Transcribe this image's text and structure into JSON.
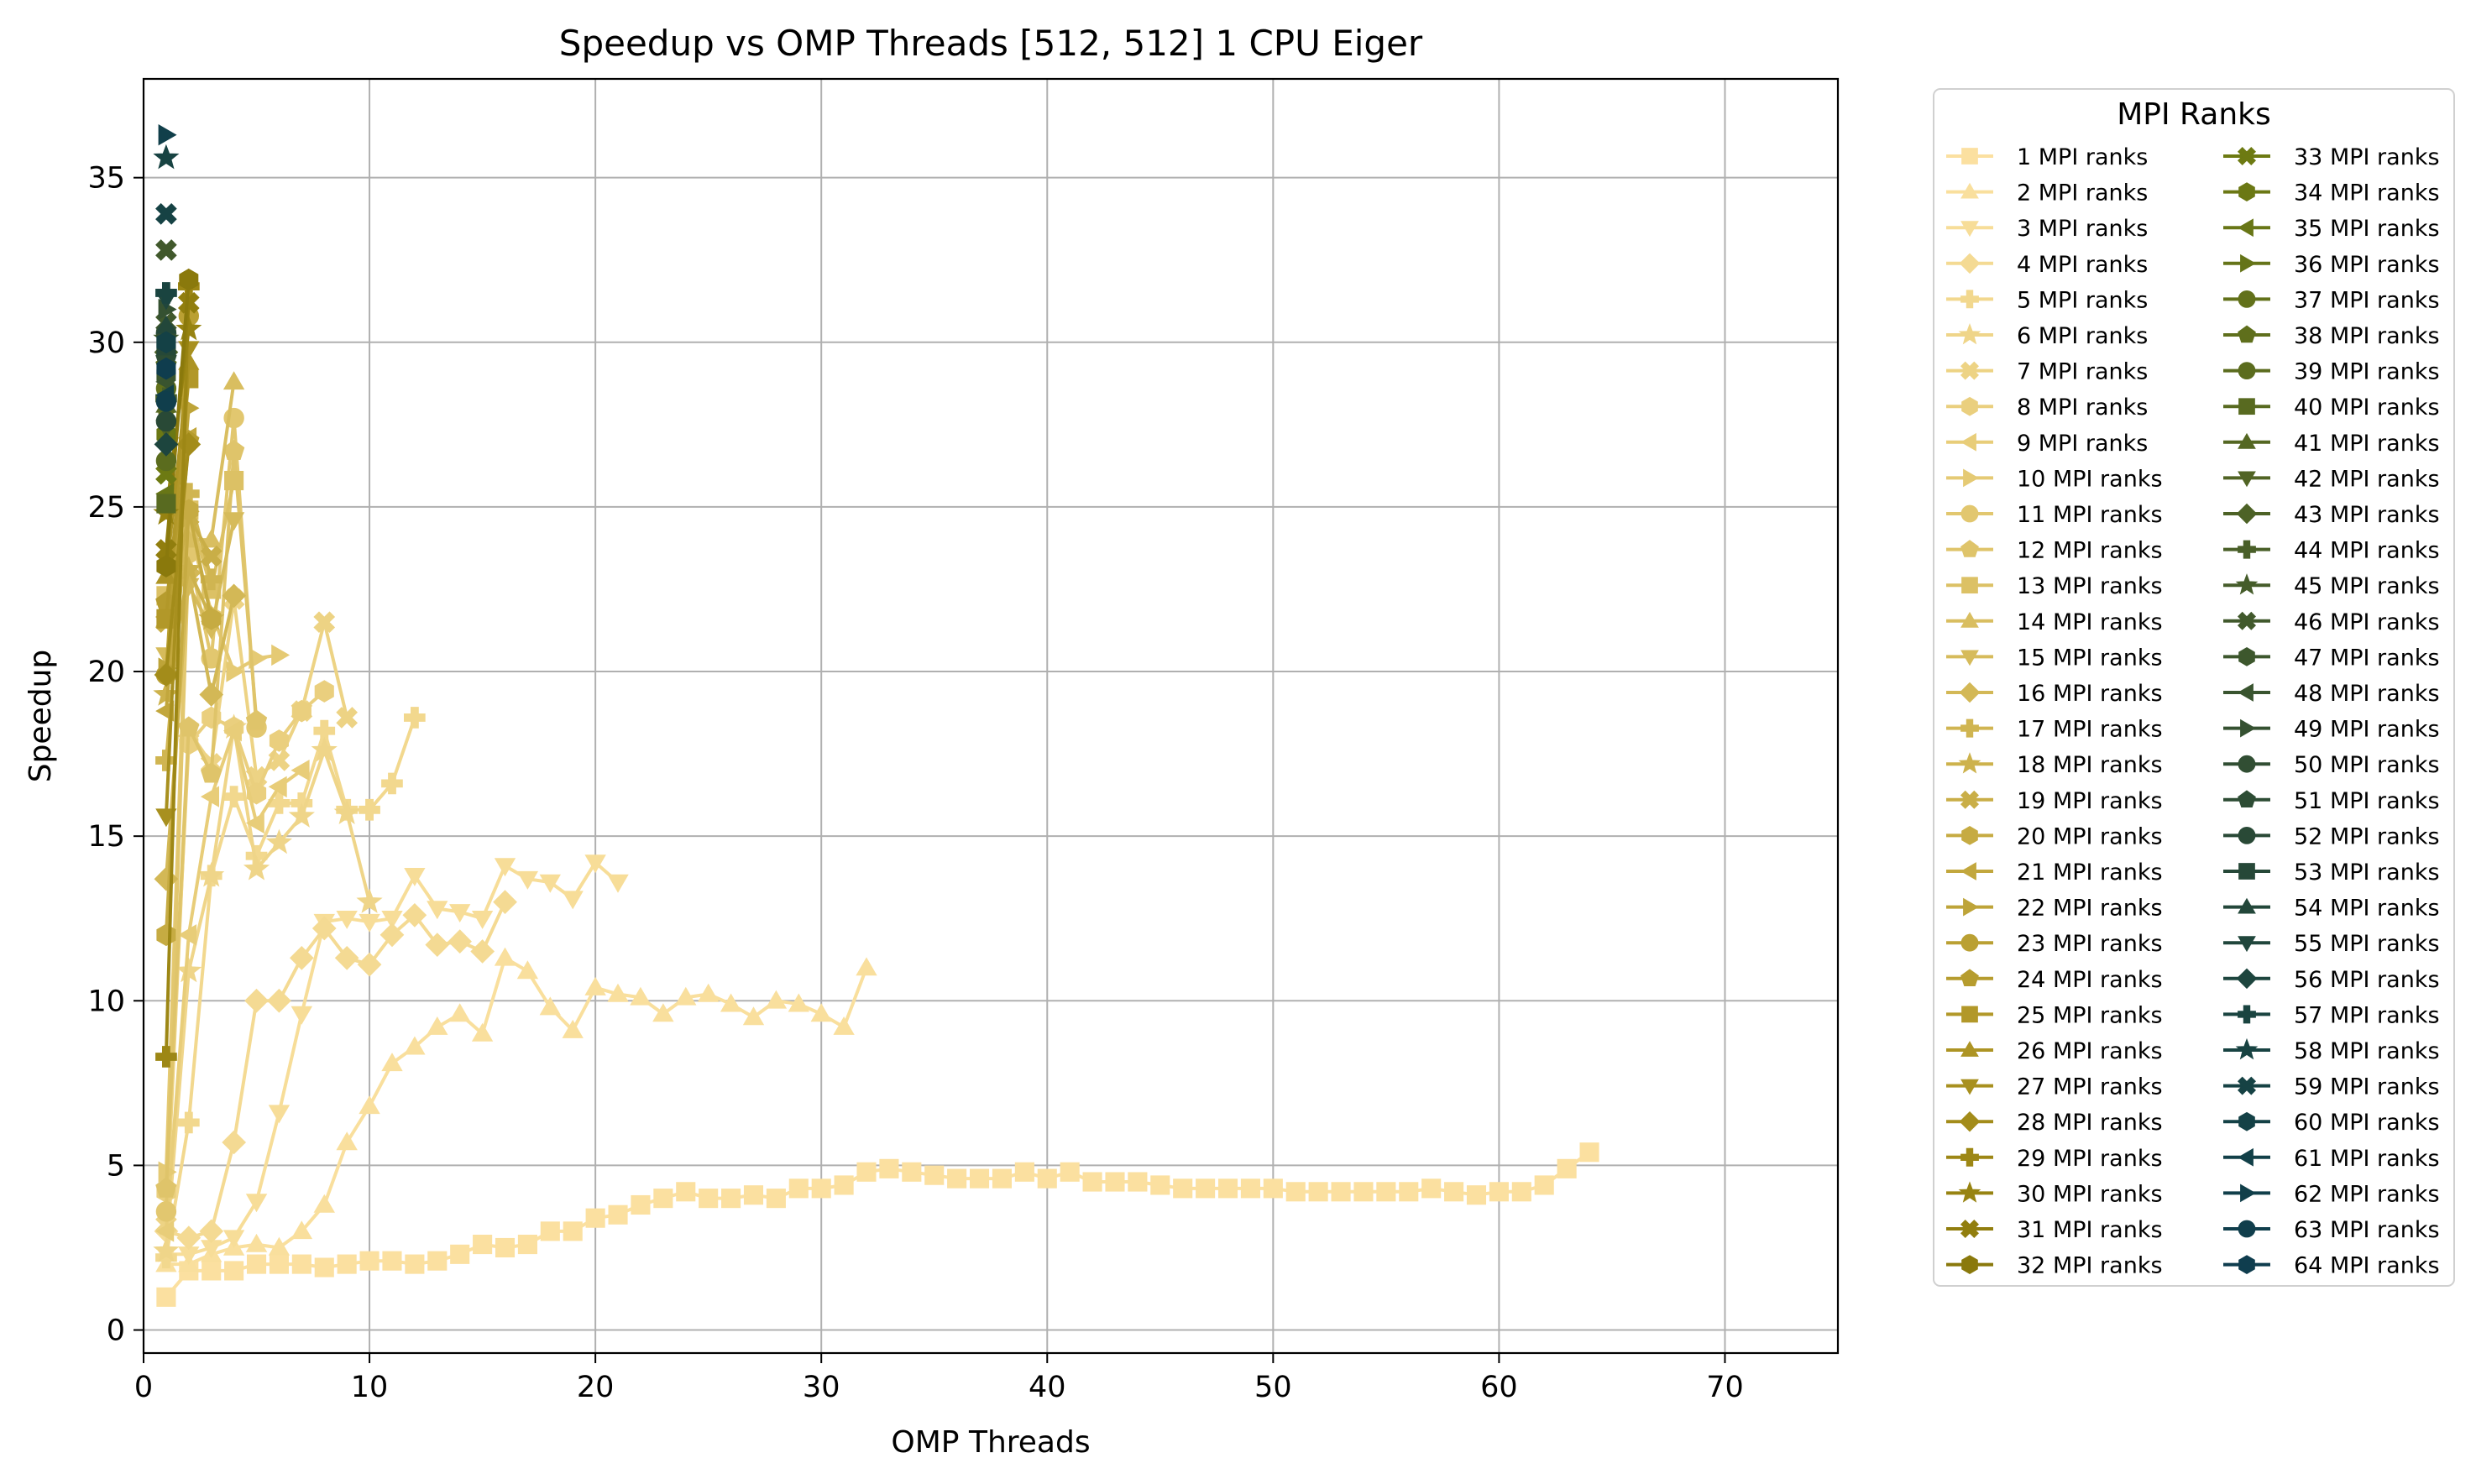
{
  "chart_data": {
    "type": "line",
    "title": "Speedup vs OMP Threads [512, 512] 1 CPU Eiger",
    "xlabel": "OMP Threads",
    "ylabel": "Speedup",
    "xlim": [
      0,
      75
    ],
    "ylim": [
      -0.7,
      38
    ],
    "xticks": [
      "0",
      "10",
      "20",
      "30",
      "40",
      "50",
      "60",
      "70"
    ],
    "yticks": [
      "0",
      "5",
      "10",
      "15",
      "20",
      "25",
      "30",
      "35"
    ],
    "grid": true,
    "legend_title": "MPI Ranks",
    "legend_position": "outside-right",
    "series_markers": [
      "s",
      "^",
      "v",
      "D",
      "P",
      "*",
      "X",
      "h",
      "<",
      ">",
      "o",
      "p"
    ],
    "series": [
      {
        "name": "1 MPI ranks",
        "color": "#fbe0a0",
        "marker": "s",
        "x": [
          1,
          2,
          3,
          4,
          5,
          6,
          7,
          8,
          9,
          10,
          11,
          12,
          13,
          14,
          15,
          16,
          17,
          18,
          19,
          20,
          21,
          22,
          23,
          24,
          25,
          26,
          27,
          28,
          29,
          30,
          31,
          32,
          33,
          34,
          35,
          36,
          37,
          38,
          39,
          40,
          41,
          42,
          43,
          44,
          45,
          46,
          47,
          48,
          49,
          50,
          51,
          52,
          53,
          54,
          55,
          56,
          57,
          58,
          59,
          60,
          61,
          62,
          63,
          64
        ],
        "y": [
          1.0,
          1.8,
          1.8,
          1.8,
          2.0,
          2.0,
          2.0,
          1.9,
          2.0,
          2.1,
          2.1,
          2.0,
          2.1,
          2.3,
          2.6,
          2.5,
          2.6,
          3.0,
          3.0,
          3.4,
          3.5,
          3.8,
          4.0,
          4.2,
          4.0,
          4.0,
          4.1,
          4.0,
          4.3,
          4.3,
          4.4,
          4.8,
          4.9,
          4.8,
          4.7,
          4.6,
          4.6,
          4.6,
          4.8,
          4.6,
          4.8,
          4.5,
          4.5,
          4.5,
          4.4,
          4.3,
          4.3,
          4.3,
          4.3,
          4.3,
          4.2,
          4.2,
          4.2,
          4.2,
          4.2,
          4.2,
          4.3,
          4.2,
          4.1,
          4.2,
          4.2,
          4.4,
          4.9,
          5.4
        ]
      },
      {
        "name": "2 MPI ranks",
        "color": "#f9df9d",
        "marker": "^",
        "x": [
          1,
          2,
          3,
          4,
          5,
          6,
          7,
          8,
          9,
          10,
          11,
          12,
          13,
          14,
          15,
          16,
          17,
          18,
          19,
          20,
          21,
          22,
          23,
          24,
          25,
          26,
          27,
          28,
          29,
          30,
          31,
          32
        ],
        "y": [
          2.0,
          2.0,
          2.3,
          2.5,
          2.6,
          2.5,
          3.0,
          3.8,
          5.7,
          6.8,
          8.1,
          8.6,
          9.2,
          9.6,
          9.0,
          11.3,
          10.9,
          9.8,
          9.1,
          10.4,
          10.2,
          10.1,
          9.6,
          10.1,
          10.2,
          9.9,
          9.5,
          10.0,
          9.9,
          9.6,
          9.2,
          11.0
        ]
      },
      {
        "name": "3 MPI ranks",
        "color": "#f7dd98",
        "marker": "v",
        "x": [
          1,
          2,
          3,
          4,
          5,
          6,
          7,
          8,
          9,
          10,
          11,
          12,
          13,
          14,
          15,
          16,
          17,
          18,
          19,
          20,
          21
        ],
        "y": [
          2.3,
          2.3,
          2.5,
          2.8,
          3.9,
          6.6,
          9.6,
          12.4,
          12.5,
          12.4,
          12.5,
          13.8,
          12.8,
          12.7,
          12.5,
          14.1,
          13.7,
          13.6,
          13.1,
          14.2,
          13.6
        ]
      },
      {
        "name": "4 MPI ranks",
        "color": "#f4da93",
        "marker": "D",
        "x": [
          1,
          2,
          3,
          4,
          5,
          6,
          7,
          8,
          9,
          10,
          11,
          12,
          13,
          14,
          15,
          16
        ],
        "y": [
          3.0,
          2.8,
          3.0,
          5.7,
          10.0,
          10.0,
          11.3,
          12.2,
          11.3,
          11.1,
          12.0,
          12.6,
          11.7,
          11.8,
          11.5,
          13.0
        ]
      },
      {
        "name": "5 MPI ranks",
        "color": "#f2d88e",
        "marker": "P",
        "x": [
          1,
          2,
          3,
          4,
          5,
          6,
          7,
          8,
          9,
          10,
          11,
          12
        ],
        "y": [
          2.2,
          6.3,
          13.8,
          16.2,
          14.4,
          16.0,
          16.0,
          18.2,
          15.8,
          15.8,
          16.6,
          18.6
        ]
      },
      {
        "name": "6 MPI ranks",
        "color": "#efd589",
        "marker": "*",
        "x": [
          1,
          2,
          3,
          4,
          5,
          6,
          7,
          8,
          9,
          10
        ],
        "y": [
          2.4,
          10.9,
          13.8,
          18.3,
          14.0,
          14.8,
          15.6,
          17.6,
          15.7,
          13.0
        ]
      },
      {
        "name": "7 MPI ranks",
        "color": "#edd384",
        "marker": "X",
        "x": [
          1,
          2,
          3,
          4,
          5,
          6,
          7,
          8,
          9
        ],
        "y": [
          3.2,
          18.2,
          17.2,
          22.2,
          16.8,
          17.3,
          18.8,
          21.5,
          18.6
        ]
      },
      {
        "name": "8 MPI ranks",
        "color": "#eacf7e",
        "marker": "h",
        "x": [
          1,
          2,
          3,
          4,
          5,
          6,
          7,
          8
        ],
        "y": [
          4.2,
          17.8,
          18.6,
          18.3,
          16.3,
          17.9,
          18.8,
          19.4
        ]
      },
      {
        "name": "9 MPI ranks",
        "color": "#e8cd79",
        "marker": "<",
        "x": [
          1,
          2,
          3,
          4,
          5,
          6,
          7
        ],
        "y": [
          3.0,
          12.0,
          16.2,
          18.2,
          15.4,
          16.5,
          17.0
        ]
      },
      {
        "name": "10 MPI ranks",
        "color": "#e5ca74",
        "marker": ">",
        "x": [
          1,
          2,
          3,
          4,
          5,
          6
        ],
        "y": [
          4.8,
          24.4,
          21.8,
          20.0,
          20.4,
          20.5
        ]
      },
      {
        "name": "11 MPI ranks",
        "color": "#e2c76f",
        "marker": "o",
        "x": [
          1,
          2,
          3,
          4,
          5
        ],
        "y": [
          3.6,
          23.6,
          20.4,
          27.7,
          18.3
        ]
      },
      {
        "name": "12 MPI ranks",
        "color": "#dfc46a",
        "marker": "p",
        "x": [
          1,
          2,
          3,
          4,
          5
        ],
        "y": [
          4.3,
          18.3,
          16.9,
          26.7,
          18.5
        ]
      },
      {
        "name": "13 MPI ranks",
        "color": "#dcc165",
        "marker": "s",
        "x": [
          1,
          2,
          3,
          4
        ],
        "y": [
          22.3,
          24.9,
          22.5,
          25.8
        ]
      },
      {
        "name": "14 MPI ranks",
        "color": "#d9be60",
        "marker": "^",
        "x": [
          1,
          2,
          3,
          4
        ],
        "y": [
          21.6,
          24.0,
          24.0,
          28.8
        ]
      },
      {
        "name": "15 MPI ranks",
        "color": "#d6bb5b",
        "marker": "v",
        "x": [
          1,
          2,
          3,
          4
        ],
        "y": [
          20.5,
          22.6,
          21.3,
          24.6
        ]
      },
      {
        "name": "16 MPI ranks",
        "color": "#d3b856",
        "marker": "D",
        "x": [
          1,
          2,
          3,
          4
        ],
        "y": [
          13.7,
          23.0,
          19.3,
          22.3
        ]
      },
      {
        "name": "17 MPI ranks",
        "color": "#d0b551",
        "marker": "P",
        "x": [
          1,
          2,
          3
        ],
        "y": [
          17.3,
          25.4,
          22.8
        ]
      },
      {
        "name": "18 MPI ranks",
        "color": "#cdb24c",
        "marker": "*",
        "x": [
          1,
          2,
          3
        ],
        "y": [
          19.3,
          23.1,
          21.6
        ]
      },
      {
        "name": "19 MPI ranks",
        "color": "#c9ae47",
        "marker": "X",
        "x": [
          1,
          2,
          3
        ],
        "y": [
          21.5,
          24.7,
          23.5
        ]
      },
      {
        "name": "20 MPI ranks",
        "color": "#c6ab42",
        "marker": "h",
        "x": [
          1,
          2,
          3
        ],
        "y": [
          12.0,
          24.9,
          21.6
        ]
      },
      {
        "name": "21 MPI ranks",
        "color": "#c2a73d",
        "marker": "<",
        "x": [
          1,
          2
        ],
        "y": [
          18.8,
          27.1
        ]
      },
      {
        "name": "22 MPI ranks",
        "color": "#bea438",
        "marker": ">",
        "x": [
          1,
          2
        ],
        "y": [
          20.1,
          28.0
        ]
      },
      {
        "name": "23 MPI ranks",
        "color": "#baa033",
        "marker": "o",
        "x": [
          1,
          2
        ],
        "y": [
          19.9,
          30.8
        ]
      },
      {
        "name": "24 MPI ranks",
        "color": "#b69c2e",
        "marker": "p",
        "x": [
          1,
          2
        ],
        "y": [
          22.1,
          27.0
        ]
      },
      {
        "name": "25 MPI ranks",
        "color": "#b29829",
        "marker": "s",
        "x": [
          1,
          2
        ],
        "y": [
          21.6,
          28.9
        ]
      },
      {
        "name": "26 MPI ranks",
        "color": "#ad9424",
        "marker": "^",
        "x": [
          1,
          2
        ],
        "y": [
          22.9,
          29.4
        ]
      },
      {
        "name": "27 MPI ranks",
        "color": "#a8901f",
        "marker": "v",
        "x": [
          1,
          2
        ],
        "y": [
          15.6,
          29.8
        ]
      },
      {
        "name": "28 MPI ranks",
        "color": "#a38c1a",
        "marker": "D",
        "x": [
          1,
          2
        ],
        "y": [
          19.9,
          26.9
        ]
      },
      {
        "name": "29 MPI ranks",
        "color": "#9d8715",
        "marker": "P",
        "x": [
          1,
          2
        ],
        "y": [
          8.3,
          31.7
        ]
      },
      {
        "name": "30 MPI ranks",
        "color": "#978311",
        "marker": "*",
        "x": [
          1,
          2
        ],
        "y": [
          24.8,
          30.4
        ]
      },
      {
        "name": "31 MPI ranks",
        "color": "#917e0e",
        "marker": "X",
        "x": [
          1,
          2
        ],
        "y": [
          23.7,
          31.2
        ]
      },
      {
        "name": "32 MPI ranks",
        "color": "#8a790c",
        "marker": "h",
        "x": [
          1,
          2
        ],
        "y": [
          23.2,
          31.9
        ]
      },
      {
        "name": "33 MPI ranks",
        "color": "#6d7a12",
        "marker": "X",
        "x": [
          1
        ],
        "y": [
          26.0
        ]
      },
      {
        "name": "34 MPI ranks",
        "color": "#6b7814",
        "marker": "h",
        "x": [
          1
        ],
        "y": [
          27.2
        ]
      },
      {
        "name": "35 MPI ranks",
        "color": "#687616",
        "marker": "<",
        "x": [
          1
        ],
        "y": [
          25.4
        ]
      },
      {
        "name": "36 MPI ranks",
        "color": "#657418",
        "marker": ">",
        "x": [
          1
        ],
        "y": [
          27.9
        ]
      },
      {
        "name": "37 MPI ranks",
        "color": "#62711a",
        "marker": "o",
        "x": [
          1
        ],
        "y": [
          28.6
        ]
      },
      {
        "name": "38 MPI ranks",
        "color": "#5f6f1c",
        "marker": "p",
        "x": [
          1
        ],
        "y": [
          29.3
        ]
      },
      {
        "name": "39 MPI ranks",
        "color": "#5b6c1e",
        "marker": "o",
        "x": [
          1
        ],
        "y": [
          26.4
        ]
      },
      {
        "name": "40 MPI ranks",
        "color": "#586a20",
        "marker": "s",
        "x": [
          1
        ],
        "y": [
          25.1
        ]
      },
      {
        "name": "41 MPI ranks",
        "color": "#546722",
        "marker": "^",
        "x": [
          1
        ],
        "y": [
          28.1
        ]
      },
      {
        "name": "42 MPI ranks",
        "color": "#516424",
        "marker": "v",
        "x": [
          1
        ],
        "y": [
          27.4
        ]
      },
      {
        "name": "43 MPI ranks",
        "color": "#4d6226",
        "marker": "D",
        "x": [
          1
        ],
        "y": [
          29.7
        ]
      },
      {
        "name": "44 MPI ranks",
        "color": "#495f28",
        "marker": "P",
        "x": [
          1
        ],
        "y": [
          28.3
        ]
      },
      {
        "name": "45 MPI ranks",
        "color": "#455c2a",
        "marker": "*",
        "x": [
          1
        ],
        "y": [
          30.1
        ]
      },
      {
        "name": "46 MPI ranks",
        "color": "#41592c",
        "marker": "X",
        "x": [
          1
        ],
        "y": [
          30.6
        ]
      },
      {
        "name": "47 MPI ranks",
        "color": "#3d572d",
        "marker": "h",
        "x": [
          1
        ],
        "y": [
          29.0
        ]
      },
      {
        "name": "48 MPI ranks",
        "color": "#39542f",
        "marker": "<",
        "x": [
          1
        ],
        "y": [
          28.8
        ]
      },
      {
        "name": "49 MPI ranks",
        "color": "#355131",
        "marker": ">",
        "x": [
          1
        ],
        "y": [
          31.0
        ]
      },
      {
        "name": "50 MPI ranks",
        "color": "#314e33",
        "marker": "o",
        "x": [
          1
        ],
        "y": [
          30.3
        ]
      },
      {
        "name": "51 MPI ranks",
        "color": "#2d4c34",
        "marker": "p",
        "x": [
          1
        ],
        "y": [
          29.5
        ]
      },
      {
        "name": "52 MPI ranks",
        "color": "#294936",
        "marker": "o",
        "x": [
          1
        ],
        "y": [
          27.6
        ]
      },
      {
        "name": "53 MPI ranks",
        "color": "#264838",
        "marker": "s",
        "x": [
          1
        ],
        "y": [
          29.9
        ]
      },
      {
        "name": "54 MPI ranks",
        "color": "#23473a",
        "marker": "^",
        "x": [
          1
        ],
        "y": [
          30.5
        ]
      },
      {
        "name": "55 MPI ranks",
        "color": "#20463c",
        "marker": "v",
        "x": [
          1
        ],
        "y": [
          31.3
        ]
      },
      {
        "name": "56 MPI ranks",
        "color": "#1d453e",
        "marker": "D",
        "x": [
          1
        ],
        "y": [
          26.9
        ]
      },
      {
        "name": "57 MPI ranks",
        "color": "#1a4440",
        "marker": "P",
        "x": [
          1
        ],
        "y": [
          31.5
        ]
      },
      {
        "name": "58 MPI ranks",
        "color": "#184342",
        "marker": "*",
        "x": [
          1
        ],
        "y": [
          35.6
        ]
      },
      {
        "name": "59 MPI ranks",
        "color": "#164244",
        "marker": "X",
        "x": [
          1
        ],
        "y": [
          33.9
        ]
      },
      {
        "name": "60 MPI ranks",
        "color": "#144146",
        "marker": "h",
        "x": [
          1
        ],
        "y": [
          30.0
        ]
      },
      {
        "name": "61 MPI ranks",
        "color": "#124048",
        "marker": "<",
        "x": [
          1
        ],
        "y": [
          28.4
        ]
      },
      {
        "name": "62 MPI ranks",
        "color": "#113f4a",
        "marker": ">",
        "x": [
          1
        ],
        "y": [
          36.3
        ]
      },
      {
        "name": "63 MPI ranks",
        "color": "#103e4c",
        "marker": "o",
        "x": [
          1
        ],
        "y": [
          28.2
        ]
      },
      {
        "name": "64 MPI ranks",
        "color": "#0f3d4e",
        "marker": "h",
        "x": [
          1
        ],
        "y": [
          29.2
        ]
      }
    ],
    "extra_points": [
      {
        "series": "46 MPI ranks",
        "x": 1,
        "y": 32.8
      }
    ]
  }
}
